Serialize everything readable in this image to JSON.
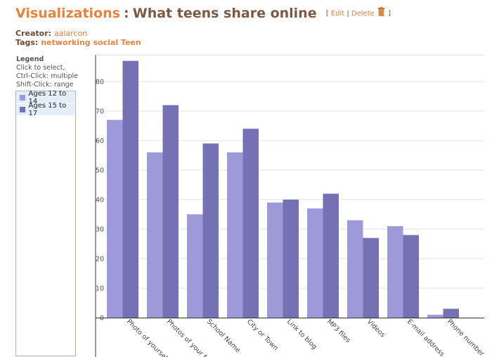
{
  "header": {
    "section_link": "Visualizations",
    "separator": ":",
    "title": "What teens share online",
    "bracket_open": "[",
    "edit_label": "Edit",
    "pipe": "|",
    "delete_label": "Delete",
    "bracket_close": "]",
    "trash_icon": "trash-can-icon"
  },
  "meta": {
    "creator_label": "Creator:",
    "creator_value": "aalarcon",
    "tags_label": "Tags:",
    "tags_value": "networking social Teen"
  },
  "legend": {
    "title": "Legend",
    "hint_1": "Click to select,",
    "hint_2": "Ctrl-Click: multiple",
    "hint_3": "Shift-Click: range",
    "items": [
      {
        "label": "Ages 12 to 14",
        "color": "#9e99d9"
      },
      {
        "label": "Ages 15 to 17",
        "color": "#7670b4"
      }
    ]
  },
  "chart_data": {
    "type": "bar",
    "categories": [
      "Photo of yourself",
      "Photos of your friends",
      "School Name",
      "City or Town",
      "Link to blog",
      "MP3 files",
      "Videos",
      "E-mail address",
      "Phone number"
    ],
    "tick_labels": [
      "Photo of yourself",
      "Photos of your f",
      "School Name",
      "City or Town",
      "Link to blog",
      "MP3 files",
      "Videos",
      "E-mail address",
      "Phone number"
    ],
    "series": [
      {
        "name": "Ages 12 to 14",
        "color": "#9e99d9",
        "values": [
          67,
          56,
          35,
          56,
          39,
          37,
          33,
          31,
          1
        ]
      },
      {
        "name": "Ages 15 to 17",
        "color": "#7670b4",
        "values": [
          87,
          72,
          59,
          64,
          40,
          42,
          27,
          28,
          3
        ]
      }
    ],
    "yticks": [
      0,
      10,
      20,
      30,
      40,
      50,
      60,
      70,
      80
    ],
    "ylim": [
      0,
      89
    ],
    "grid": true,
    "legend_position": "left"
  }
}
